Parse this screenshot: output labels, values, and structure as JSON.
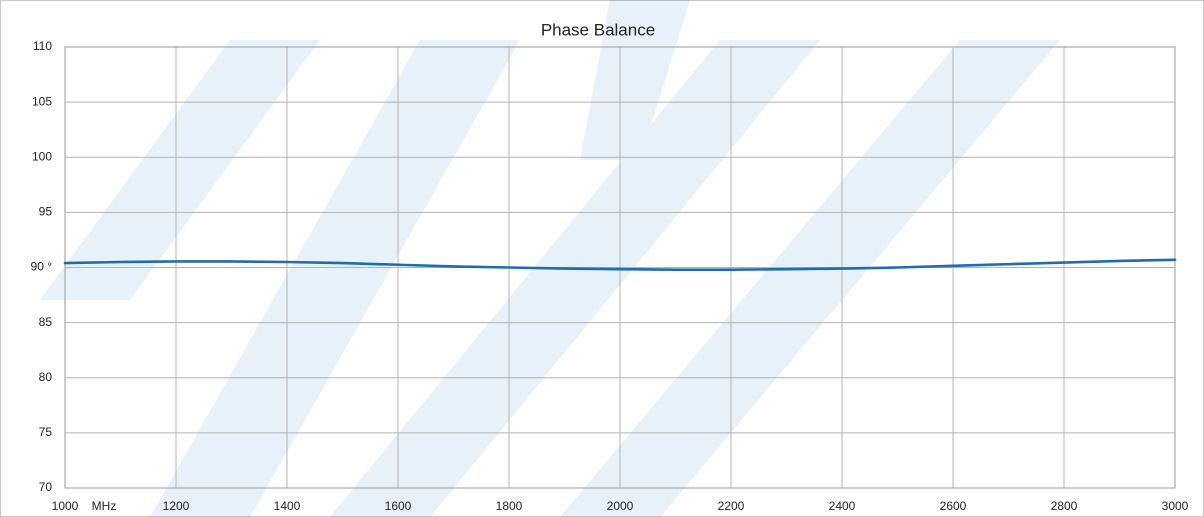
{
  "chart_data": {
    "type": "line",
    "title": "Phase Balance",
    "x_label": "MHz",
    "x": [
      1000,
      1100,
      1200,
      1300,
      1400,
      1500,
      1600,
      1700,
      1800,
      1900,
      2000,
      2100,
      2200,
      2300,
      2400,
      2500,
      2600,
      2700,
      2800,
      2900,
      3000
    ],
    "series": [
      {
        "color": "#1f6cb0",
        "values": [
          90.4,
          90.5,
          90.55,
          90.55,
          90.5,
          90.4,
          90.25,
          90.1,
          90.0,
          89.9,
          89.85,
          89.8,
          89.8,
          89.85,
          89.9,
          90.0,
          90.15,
          90.3,
          90.45,
          90.6,
          90.7
        ]
      }
    ],
    "xlim": [
      1000,
      3000
    ],
    "xticks": [
      1000,
      1200,
      1400,
      1600,
      1800,
      2000,
      2200,
      2400,
      2600,
      2800,
      3000
    ],
    "ylim": [
      70,
      110
    ],
    "yticks": [
      70,
      75,
      80,
      85,
      {
        "value": 90,
        "label": "90 °"
      },
      95,
      100,
      105,
      110
    ],
    "grid": true
  }
}
